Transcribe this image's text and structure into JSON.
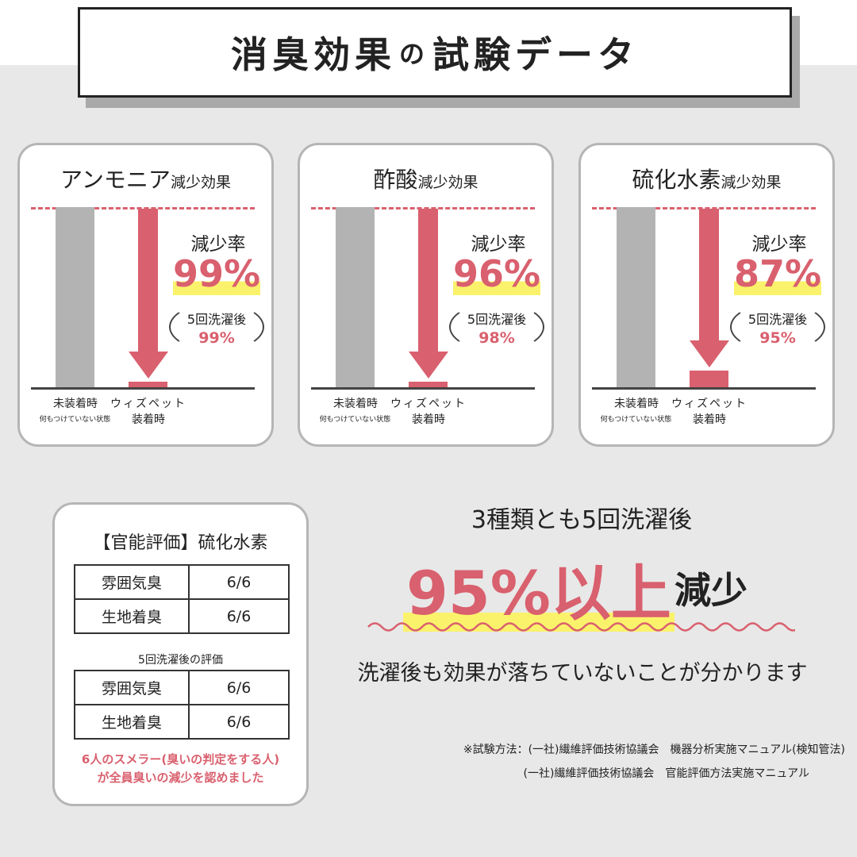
{
  "title": {
    "part1": "消臭効果",
    "part2": "の",
    "part3": "試験データ"
  },
  "colors": {
    "accent": "#d9606e",
    "highlight": "#fbf26b",
    "control_bar": "#b3b3b3"
  },
  "chart_data": [
    {
      "type": "bar",
      "title": "アンモニア",
      "title_suffix": "減少効果",
      "categories": [
        "未装着時",
        "ウィズペット装着時"
      ],
      "category_sub": [
        "何もつけていない状態",
        "装着時"
      ],
      "reduction_rate_label": "減少率",
      "reduction_rate": "99%",
      "reduction_value": 99,
      "after_wash_label": "5回洗濯後",
      "after_wash": "99%"
    },
    {
      "type": "bar",
      "title": "酢酸",
      "title_suffix": "減少効果",
      "categories": [
        "未装着時",
        "ウィズペット装着時"
      ],
      "category_sub": [
        "何もつけていない状態",
        "装着時"
      ],
      "reduction_rate_label": "減少率",
      "reduction_rate": "96%",
      "reduction_value": 96,
      "after_wash_label": "5回洗濯後",
      "after_wash": "98%"
    },
    {
      "type": "bar",
      "title": "硫化水素",
      "title_suffix": "減少効果",
      "categories": [
        "未装着時",
        "ウィズペット装着時"
      ],
      "category_sub": [
        "何もつけていない状態",
        "装着時"
      ],
      "reduction_rate_label": "減少率",
      "reduction_rate": "87%",
      "reduction_value": 87,
      "after_wash_label": "5回洗濯後",
      "after_wash": "95%"
    }
  ],
  "labels": {
    "control": "未装着時",
    "control_sub": "何もつけていない状態",
    "product": "ウィズペット",
    "product_sub": "装着時"
  },
  "sensory": {
    "title": "【官能評価】硫化水素",
    "rows": [
      [
        "雰囲気臭",
        "6/6"
      ],
      [
        "生地着臭",
        "6/6"
      ]
    ],
    "after_title": "5回洗濯後の評価",
    "after_rows": [
      [
        "雰囲気臭",
        "6/6"
      ],
      [
        "生地着臭",
        "6/6"
      ]
    ],
    "note1": "6人のスメラー(臭いの判定をする人)",
    "note2": "が全員臭いの減少を認めました"
  },
  "summary": {
    "line1": "3種類とも5回洗濯後",
    "big": "95%以上",
    "suffix": "減少",
    "line3": "洗濯後も効果が落ちていないことが分かります"
  },
  "footnotes": [
    "※試験方法：(一社)繊維評価技術協議会　機器分析実施マニュアル(検知管法)",
    "(一社)繊維評価技術協議会　官能評価方法実施マニュアル"
  ]
}
